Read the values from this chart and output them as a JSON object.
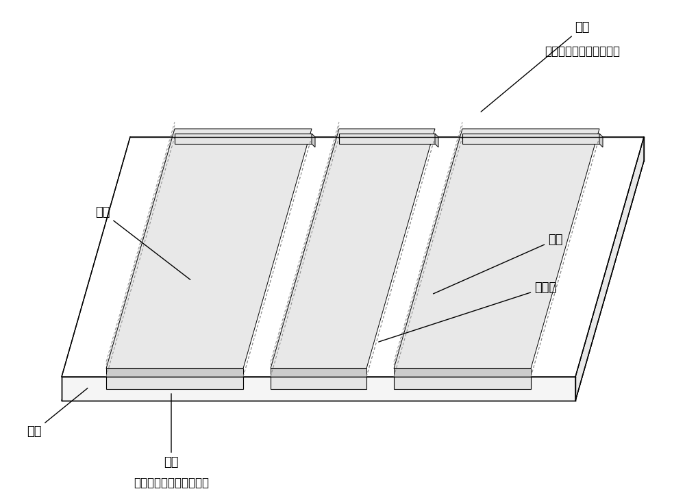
{
  "bg_color": "#ffffff",
  "line_color": "#000000",
  "dashed_color": "#888888",
  "fill_color": "#ffffff",
  "strip_fill": "#f0f0f0",
  "labels": {
    "ground_left_top": "地线",
    "ground_right_top": "地线",
    "signal_top": "信号线",
    "end_top": "端部",
    "end_top_sub": "（安装同轴电缆连接器）",
    "ground_bottom_left": "地线",
    "end_bottom": "端部",
    "end_bottom_sub": "（安装同轴电缆连接器）"
  },
  "font_size": 13,
  "font_family": "SimSun"
}
